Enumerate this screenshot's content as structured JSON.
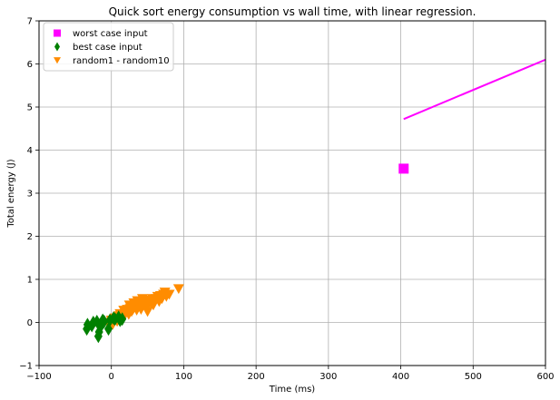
{
  "chart_data": {
    "type": "scatter",
    "title": "Quick sort energy consumption vs wall time, with linear regression.",
    "xlabel": "Time (ms)",
    "ylabel": "Total energy (J)",
    "xlim": [
      -100,
      600
    ],
    "ylim": [
      -1,
      7
    ],
    "xticks": [
      -100,
      0,
      100,
      200,
      300,
      400,
      500,
      600
    ],
    "yticks": [
      -1,
      0,
      1,
      2,
      3,
      4,
      5,
      6,
      7
    ],
    "xtick_labels": [
      "−100",
      "0",
      "100",
      "200",
      "300",
      "400",
      "500",
      "600"
    ],
    "ytick_labels": [
      "−1",
      "0",
      "1",
      "2",
      "3",
      "4",
      "5",
      "6",
      "7"
    ],
    "grid": true,
    "legend_position": "top-left",
    "series": [
      {
        "name": "worst case input",
        "marker": "square",
        "color": "#ff00ff",
        "points": [
          [
            404,
            3.57
          ]
        ]
      },
      {
        "name": "best case input",
        "marker": "diamond",
        "color": "#008000",
        "points": [
          [
            -34,
            -0.15
          ],
          [
            -33,
            -0.05
          ],
          [
            -27,
            -0.07
          ],
          [
            -25,
            0.0
          ],
          [
            -20,
            0.02
          ],
          [
            -18,
            -0.32
          ],
          [
            -17,
            -0.22
          ],
          [
            -15,
            -0.1
          ],
          [
            -12,
            0.05
          ],
          [
            -10,
            0.02
          ],
          [
            -4,
            -0.15
          ],
          [
            -2,
            0.05
          ],
          [
            3,
            0.1
          ],
          [
            5,
            0.08
          ],
          [
            10,
            0.12
          ],
          [
            12,
            0.05
          ],
          [
            15,
            0.08
          ]
        ]
      },
      {
        "name": "random1 - random10",
        "marker": "triangle-down",
        "color": "#ff8c00",
        "points": [
          [
            -5,
            0.0
          ],
          [
            0,
            0.05
          ],
          [
            2,
            -0.05
          ],
          [
            5,
            0.1
          ],
          [
            8,
            0.02
          ],
          [
            10,
            0.15
          ],
          [
            12,
            0.2
          ],
          [
            14,
            0.1
          ],
          [
            17,
            0.28
          ],
          [
            18,
            0.15
          ],
          [
            20,
            0.22
          ],
          [
            22,
            0.3
          ],
          [
            24,
            0.18
          ],
          [
            25,
            0.4
          ],
          [
            26,
            0.32
          ],
          [
            28,
            0.25
          ],
          [
            30,
            0.3
          ],
          [
            31,
            0.45
          ],
          [
            33,
            0.35
          ],
          [
            35,
            0.28
          ],
          [
            36,
            0.5
          ],
          [
            38,
            0.38
          ],
          [
            40,
            0.45
          ],
          [
            41,
            0.3
          ],
          [
            43,
            0.55
          ],
          [
            45,
            0.42
          ],
          [
            47,
            0.35
          ],
          [
            48,
            0.52
          ],
          [
            50,
            0.25
          ],
          [
            51,
            0.4
          ],
          [
            53,
            0.5
          ],
          [
            55,
            0.45
          ],
          [
            57,
            0.55
          ],
          [
            58,
            0.4
          ],
          [
            60,
            0.5
          ],
          [
            62,
            0.55
          ],
          [
            64,
            0.6
          ],
          [
            66,
            0.48
          ],
          [
            68,
            0.62
          ],
          [
            70,
            0.55
          ],
          [
            72,
            0.65
          ],
          [
            74,
            0.7
          ],
          [
            76,
            0.6
          ],
          [
            80,
            0.65
          ],
          [
            93,
            0.78
          ]
        ]
      }
    ],
    "regression_lines": [
      {
        "series": "worst case input",
        "color": "#ff00ff",
        "x": [
          404,
          600
        ],
        "y": [
          4.72,
          6.1
        ]
      }
    ]
  }
}
